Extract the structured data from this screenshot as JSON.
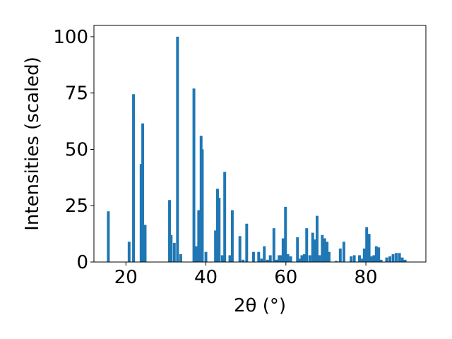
{
  "chart_data": {
    "type": "bar",
    "title": "",
    "xlabel": "2θ (°)",
    "ylabel": "Intensities (scaled)",
    "xlim": [
      12,
      95
    ],
    "ylim": [
      0,
      105
    ],
    "xticks": [
      20,
      40,
      60,
      80
    ],
    "yticks": [
      0,
      25,
      50,
      75,
      100
    ],
    "grid": false,
    "legend": "none",
    "color": "#1f77b4",
    "bar_width": 0.7,
    "x": [
      15.6,
      20.8,
      21.9,
      23.8,
      24.2,
      24.8,
      30.9,
      31.3,
      32.1,
      32.9,
      33.7,
      37.0,
      37.6,
      38.2,
      38.8,
      39.1,
      40.0,
      42.4,
      42.9,
      43.3,
      44.1,
      44.7,
      46.0,
      46.6,
      48.5,
      49.3,
      50.2,
      51.9,
      53.2,
      53.9,
      54.6,
      55.4,
      56.1,
      57.0,
      57.7,
      58.3,
      58.8,
      59.3,
      59.9,
      60.5,
      61.2,
      62.9,
      63.5,
      64.0,
      64.6,
      65.2,
      66.0,
      66.7,
      67.3,
      67.8,
      68.4,
      69.1,
      69.7,
      70.3,
      70.8,
      72.6,
      73.6,
      74.5,
      76.3,
      77.1,
      78.4,
      79.0,
      79.6,
      80.2,
      80.8,
      81.4,
      82.0,
      82.6,
      83.2,
      83.8,
      85.2,
      86.0,
      86.8,
      87.6,
      88.4,
      89.1,
      89.8
    ],
    "values": [
      22.5,
      9.0,
      74.5,
      43.5,
      61.5,
      16.5,
      27.5,
      12.0,
      8.5,
      100.0,
      3.5,
      77.0,
      7.0,
      23.0,
      56.0,
      50.0,
      4.5,
      14.0,
      32.5,
      28.5,
      3.0,
      40.0,
      3.0,
      23.0,
      11.5,
      1.0,
      17.0,
      4.5,
      4.5,
      1.5,
      7.0,
      1.0,
      3.0,
      15.0,
      1.0,
      3.0,
      3.0,
      10.5,
      24.5,
      3.5,
      2.5,
      11.0,
      1.5,
      3.0,
      3.5,
      15.0,
      3.0,
      13.0,
      10.0,
      20.5,
      3.0,
      12.0,
      10.5,
      9.0,
      4.5,
      0.5,
      6.0,
      9.0,
      2.5,
      3.0,
      3.0,
      1.5,
      6.0,
      15.5,
      12.5,
      2.5,
      3.0,
      7.0,
      6.5,
      1.0,
      2.0,
      2.5,
      3.5,
      4.0,
      4.0,
      2.0,
      1.0
    ]
  }
}
